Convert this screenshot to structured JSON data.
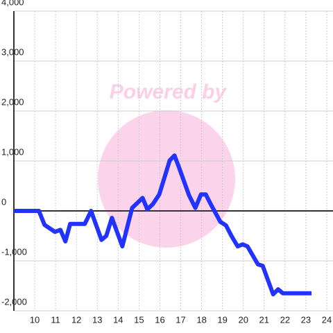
{
  "chart_data": {
    "type": "line",
    "watermark": "Powered by",
    "xlim": [
      9,
      24.3
    ],
    "xticks": [
      10,
      11,
      12,
      13,
      14,
      15,
      16,
      17,
      18,
      19,
      20,
      21,
      22,
      23,
      24
    ],
    "ylim": [
      -2000,
      4000
    ],
    "yticks": [
      {
        "value": -2000,
        "label": "-2,000"
      },
      {
        "value": -1000,
        "label": "-1,000"
      },
      0,
      {
        "value": 1000,
        "label": "1,000"
      },
      {
        "value": 2000,
        "label": "2,000"
      },
      {
        "value": 3000,
        "label": "3,000"
      },
      {
        "value": 4000,
        "label": "4,000"
      }
    ],
    "grid": true,
    "x": [
      9,
      10.2,
      10.47,
      10.97,
      11.23,
      11.47,
      11.7,
      12.4,
      12.7,
      13.2,
      13.43,
      13.7,
      14.2,
      14.67,
      15.17,
      15.4,
      15.67,
      15.97,
      16.2,
      16.47,
      16.7,
      16.9,
      17.4,
      17.7,
      17.97,
      18.2,
      18.47,
      18.9,
      19.17,
      19.43,
      19.73,
      19.97,
      20.2,
      20.7,
      20.93,
      21.43,
      21.67,
      21.9,
      23.27
    ],
    "series": [
      {
        "color": "#2233ff",
        "values": [
          0,
          0,
          -280,
          -420,
          -380,
          -610,
          -260,
          -260,
          0,
          -580,
          -500,
          -140,
          -710,
          60,
          260,
          30,
          140,
          330,
          640,
          1010,
          1110,
          890,
          310,
          60,
          330,
          330,
          110,
          -220,
          -290,
          -500,
          -710,
          -670,
          -710,
          -1070,
          -1100,
          -1670,
          -1570,
          -1650,
          -1650
        ]
      }
    ]
  }
}
